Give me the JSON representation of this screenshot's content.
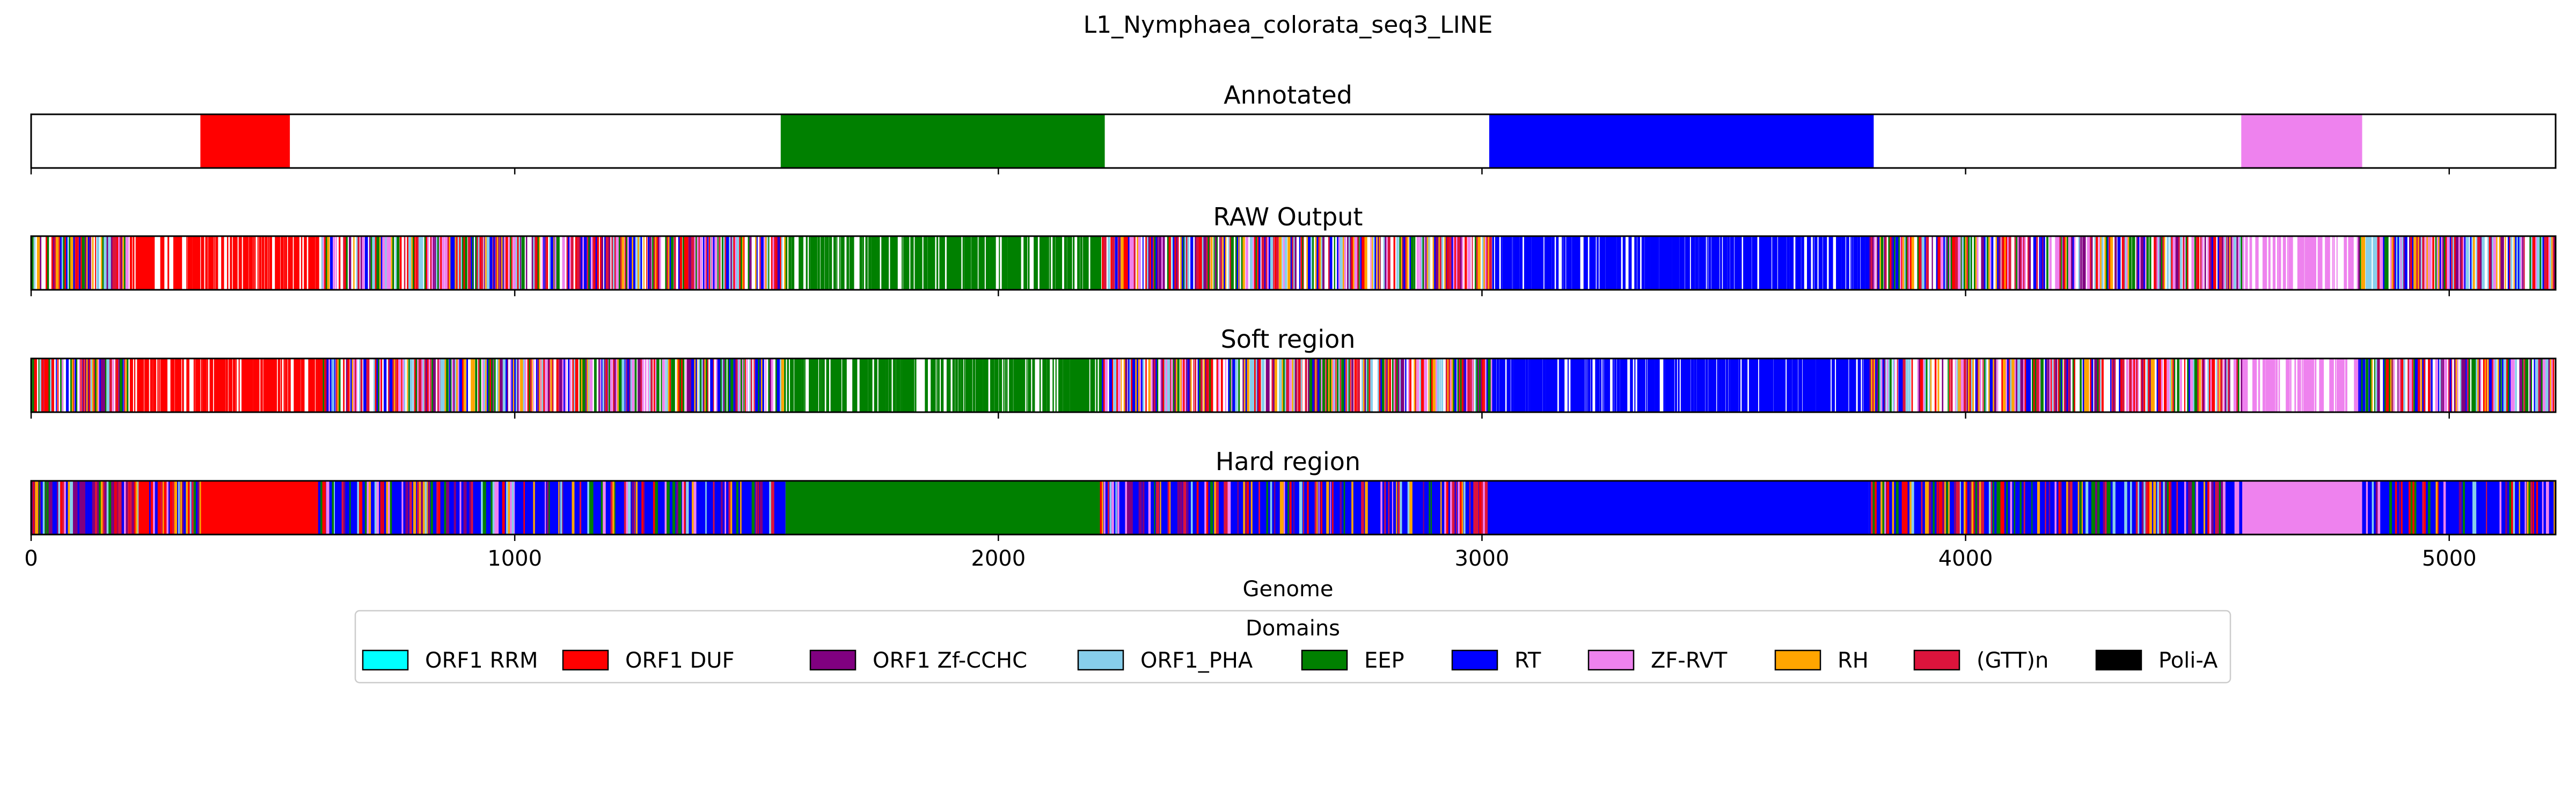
{
  "title": "L1_Nymphaea_colorata_seq3_LINE",
  "chart_data": {
    "type": "genome-track",
    "xlabel": "Genome",
    "xlim": [
      0,
      5220
    ],
    "xticks": [
      0,
      1000,
      2000,
      3000,
      4000,
      5000
    ],
    "panels": [
      {
        "title": "Annotated",
        "segments": [
          {
            "start": 350,
            "end": 535,
            "domain": "ORF1 DUF"
          },
          {
            "start": 1550,
            "end": 2220,
            "domain": "EEP"
          },
          {
            "start": 3015,
            "end": 3810,
            "domain": "RT"
          },
          {
            "start": 4570,
            "end": 4820,
            "domain": "ZF-RVT"
          }
        ]
      },
      {
        "title": "RAW Output",
        "mode": "stripes",
        "regions": [
          {
            "start": 0,
            "end": 5220,
            "domain": "RT",
            "density": 0.75,
            "mix": [
              "RT",
              "ORF1 Zf-CCHC",
              "EEP",
              "ORF1 DUF",
              "(GTT)n",
              "ORF1_PHA",
              "RH",
              "ZF-RVT"
            ]
          },
          {
            "start": 200,
            "end": 600,
            "domain": "ORF1 DUF",
            "density": 0.7,
            "mix": [
              "ORF1 DUF"
            ]
          },
          {
            "start": 1560,
            "end": 2210,
            "domain": "EEP",
            "density": 0.72,
            "mix": [
              "EEP"
            ]
          },
          {
            "start": 3020,
            "end": 3800,
            "domain": "RT",
            "density": 0.8,
            "mix": [
              "RT"
            ]
          },
          {
            "start": 4570,
            "end": 4810,
            "domain": "ZF-RVT",
            "density": 0.55,
            "mix": [
              "ZF-RVT"
            ]
          }
        ]
      },
      {
        "title": "Soft region",
        "mode": "stripes",
        "regions": [
          {
            "start": 0,
            "end": 5220,
            "domain": "RT",
            "density": 0.75,
            "mix": [
              "RT",
              "ORF1 Zf-CCHC",
              "EEP",
              "ORF1 DUF",
              "(GTT)n",
              "ORF1_PHA",
              "RH",
              "ZF-RVT"
            ]
          },
          {
            "start": 200,
            "end": 600,
            "domain": "ORF1 DUF",
            "density": 0.72,
            "mix": [
              "ORF1 DUF"
            ]
          },
          {
            "start": 1560,
            "end": 2210,
            "domain": "EEP",
            "density": 0.74,
            "mix": [
              "EEP"
            ]
          },
          {
            "start": 3020,
            "end": 3800,
            "domain": "RT",
            "density": 0.82,
            "mix": [
              "RT"
            ]
          },
          {
            "start": 4570,
            "end": 4810,
            "domain": "ZF-RVT",
            "density": 0.55,
            "mix": [
              "ZF-RVT"
            ]
          }
        ]
      },
      {
        "title": "Hard region",
        "mode": "solid",
        "segments": [
          {
            "start": 0,
            "end": 200,
            "domain": "ORF1 Zf-CCHC"
          },
          {
            "start": 200,
            "end": 300,
            "domain": "ORF1 DUF"
          },
          {
            "start": 300,
            "end": 350,
            "domain": "RT"
          },
          {
            "start": 350,
            "end": 590,
            "domain": "ORF1 DUF"
          },
          {
            "start": 590,
            "end": 1560,
            "domain": "RT"
          },
          {
            "start": 1560,
            "end": 2210,
            "domain": "EEP"
          },
          {
            "start": 2210,
            "end": 3010,
            "domain": "RT"
          },
          {
            "start": 3010,
            "end": 3800,
            "domain": "RT"
          },
          {
            "start": 3800,
            "end": 4570,
            "domain": "RT"
          },
          {
            "start": 4570,
            "end": 4820,
            "domain": "ZF-RVT"
          },
          {
            "start": 4820,
            "end": 5220,
            "domain": "RT"
          }
        ],
        "noisy": [
          {
            "start": 0,
            "end": 350
          },
          {
            "start": 590,
            "end": 1560
          },
          {
            "start": 2210,
            "end": 3010
          },
          {
            "start": 3800,
            "end": 4570
          },
          {
            "start": 4820,
            "end": 5220
          }
        ]
      }
    ],
    "legend": {
      "title": "Domains",
      "position": "bottom-center",
      "items": [
        {
          "label": "ORF1 RRM",
          "color": "#00ffff"
        },
        {
          "label": "ORF1 DUF",
          "color": "#ff0000"
        },
        {
          "label": "ORF1 Zf-CCHC",
          "color": "#800080"
        },
        {
          "label": "ORF1_PHA",
          "color": "#87ceeb"
        },
        {
          "label": "EEP",
          "color": "#008000"
        },
        {
          "label": "RT",
          "color": "#0000ff"
        },
        {
          "label": "ZF-RVT",
          "color": "#ee82ee"
        },
        {
          "label": "RH",
          "color": "#ffa500"
        },
        {
          "label": "(GTT)n",
          "color": "#dc143c"
        },
        {
          "label": "Poli-A",
          "color": "#000000"
        }
      ]
    }
  }
}
